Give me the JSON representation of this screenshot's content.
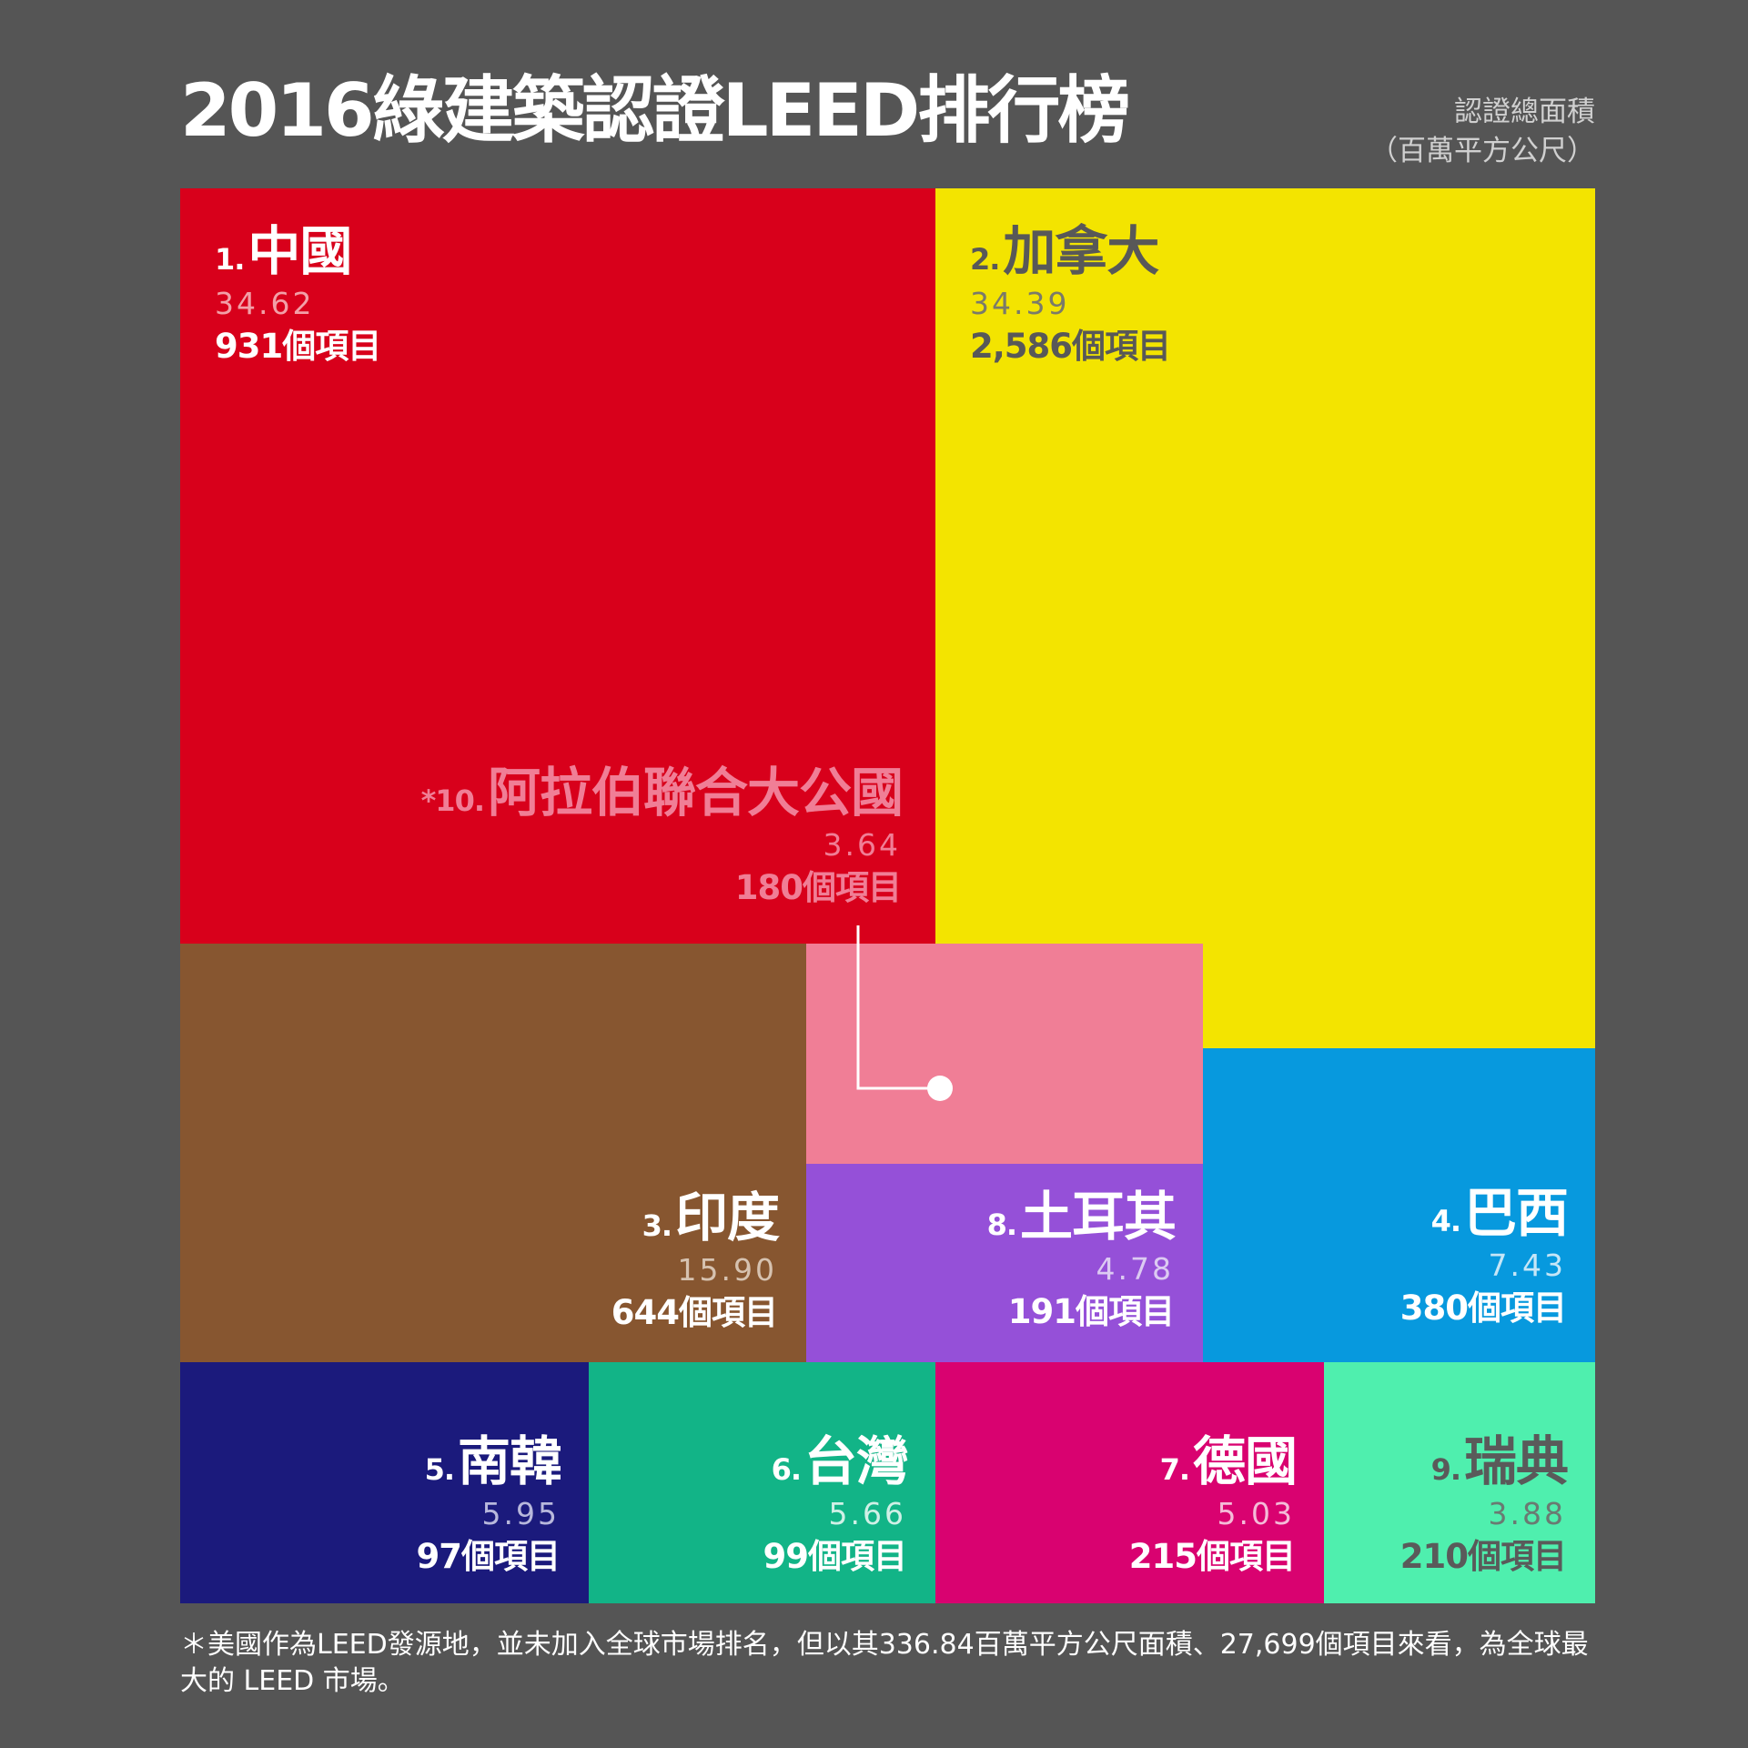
{
  "header": {
    "title": "2016綠建築認證LEED排行榜",
    "unit_line1": "認證總面積",
    "unit_line2": "（百萬平方公尺）"
  },
  "chart_data": {
    "type": "treemap",
    "title": "2016綠建築認證LEED排行榜",
    "value_label": "認證總面積（百萬平方公尺）",
    "items": [
      {
        "rank": "1.",
        "name": "中國",
        "value": 34.62,
        "value_text": "34.62",
        "projects": "931個項目",
        "color": "#d8001b",
        "text_color": "#ffffff",
        "value_color": "#f2a0a8"
      },
      {
        "rank": "2.",
        "name": "加拿大",
        "value": 34.39,
        "value_text": "34.39",
        "projects": "2,586個項目",
        "color": "#f3e400",
        "text_color": "#585858",
        "value_color": "#7a7a6a"
      },
      {
        "rank": "3.",
        "name": "印度",
        "value": 15.9,
        "value_text": "15.90",
        "projects": "644個項目",
        "color": "#875630",
        "text_color": "#ffffff",
        "value_color": "#d6c2b0"
      },
      {
        "rank": "4.",
        "name": "巴西",
        "value": 7.43,
        "value_text": "7.43",
        "projects": "380個項目",
        "color": "#0799de",
        "text_color": "#ffffff",
        "value_color": "#c6e6f7"
      },
      {
        "rank": "5.",
        "name": "南韓",
        "value": 5.95,
        "value_text": "5.95",
        "projects": "97個項目",
        "color": "#1b1a7c",
        "text_color": "#ffffff",
        "value_color": "#b8b8dc"
      },
      {
        "rank": "6.",
        "name": "台灣",
        "value": 5.66,
        "value_text": "5.66",
        "projects": "99個項目",
        "color": "#12b487",
        "text_color": "#ffffff",
        "value_color": "#d0f0e6"
      },
      {
        "rank": "7.",
        "name": "德國",
        "value": 5.03,
        "value_text": "5.03",
        "projects": "215個項目",
        "color": "#d90270",
        "text_color": "#ffffff",
        "value_color": "#f4bcd8"
      },
      {
        "rank": "8.",
        "name": "土耳其",
        "value": 4.78,
        "value_text": "4.78",
        "projects": "191個項目",
        "color": "#9550d8",
        "text_color": "#ffffff",
        "value_color": "#dccaf2"
      },
      {
        "rank": "9.",
        "name": "瑞典",
        "value": 3.88,
        "value_text": "3.88",
        "projects": "210個項目",
        "color": "#4fefae",
        "text_color": "#5a5a5a",
        "value_color": "#6a7a72"
      },
      {
        "rank": "*10.",
        "name": "阿拉伯聯合大公國",
        "value": 3.64,
        "value_text": "3.64",
        "projects": "180個項目",
        "color": "#f07e96",
        "text_color": "#f07e96",
        "value_color": "#f07e96"
      }
    ]
  },
  "footnote": "＊美國作為LEED發源地，並未加入全球市場排名，但以其336.84百萬平方公尺面積、27,699個項目來看，為全球最大的 LEED 市場。"
}
